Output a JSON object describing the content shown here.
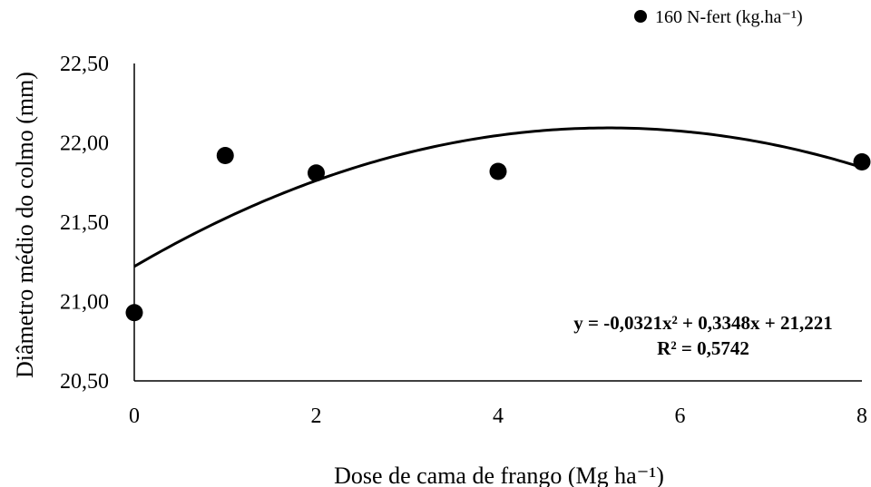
{
  "chart_data": {
    "type": "scatter",
    "xlabel": "Dose de cama de frango (Mg ha⁻¹)",
    "ylabel": "Diâmetro médio do colmo (mm)",
    "xlim": [
      0,
      8
    ],
    "ylim": [
      20.5,
      22.5
    ],
    "x_ticks": [
      "0",
      "2",
      "4",
      "6",
      "8"
    ],
    "y_ticks": [
      "20,50",
      "21,00",
      "21,50",
      "22,00",
      "22,50"
    ],
    "grid": false,
    "legend_position": "top-right",
    "series": [
      {
        "name": "160 N-fert (kg.ha⁻¹)",
        "color": "#000000",
        "marker": "circle",
        "x": [
          0,
          1,
          2,
          4,
          8
        ],
        "y": [
          20.93,
          21.92,
          21.81,
          21.82,
          21.88
        ]
      }
    ],
    "trendline": {
      "type": "polynomial",
      "coefficients": [
        -0.0321,
        0.3348,
        21.221
      ],
      "equation": "y = -0,0321x² + 0,3348x + 21,221",
      "r_squared": "R² = 0,5742"
    }
  }
}
